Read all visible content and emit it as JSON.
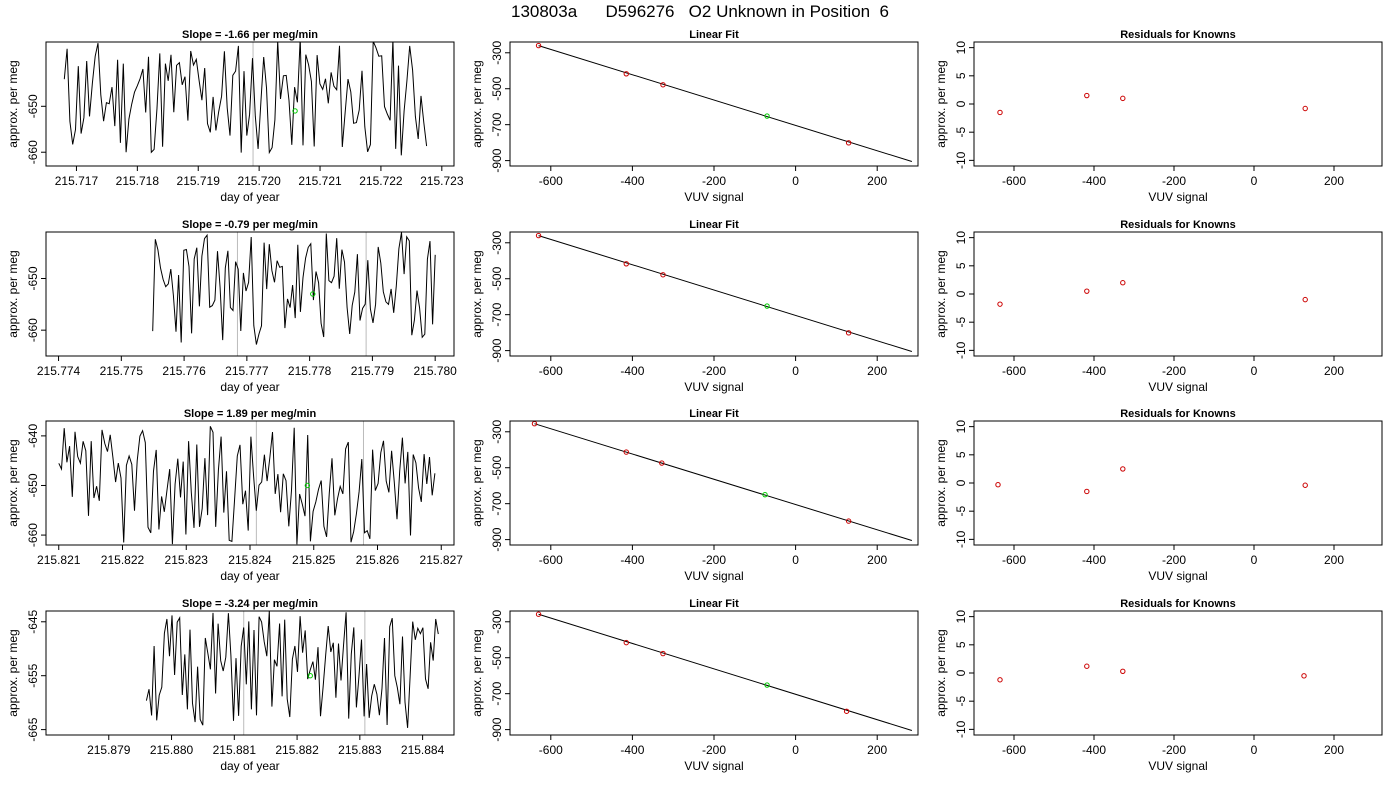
{
  "page_title": "130803a      D596276   O2 Unknown in Position  6",
  "colors": {
    "trace": "#000000",
    "known_point": "#cc0000",
    "unknown_point": "#00cc00",
    "vline": "#bbbbbb",
    "axis": "#000000"
  },
  "chart_data": [
    {
      "type": "line",
      "title": "Slope =  -1.66  per meg/min",
      "xlabel": "day of year",
      "ylabel": "approx. per meg",
      "xlim": [
        215.7165,
        215.7232
      ],
      "ylim": [
        -663,
        -636
      ],
      "xticks": [
        "215.717",
        "215.718",
        "215.719",
        "215.720",
        "215.721",
        "215.722",
        "215.723"
      ],
      "yticks": [
        "-650",
        "-660"
      ],
      "vlines": [
        215.7199
      ],
      "unknown_point": {
        "x": 215.72059,
        "y": -651
      },
      "series_start": 215.7168,
      "series_end": 215.72275,
      "series_n": 130,
      "series_center": -648,
      "series_amp": 13,
      "seed": 11
    },
    {
      "type": "bar",
      "title": "Linear Fit",
      "xlabel": "VUV signal",
      "ylabel": "approx. per meg",
      "xlim": [
        -700,
        300
      ],
      "ylim": [
        -930,
        -240
      ],
      "xticks": [
        "-600",
        "-400",
        "-200",
        "0",
        "200"
      ],
      "yticks": [
        "-300",
        "-500",
        "-700",
        "-900"
      ],
      "fit": {
        "x": [
          -630,
          285
        ],
        "y": [
          -260,
          -905
        ]
      },
      "known_points": [
        {
          "x": -630,
          "y": -260
        },
        {
          "x": -415,
          "y": -417
        },
        {
          "x": -325,
          "y": -478
        },
        {
          "x": 130,
          "y": -801
        }
      ],
      "unknown_point": {
        "x": -70,
        "y": -652
      }
    },
    {
      "type": "scatter",
      "title": "Residuals for Knowns",
      "xlabel": "VUV signal",
      "ylabel": "approx. per meg",
      "xlim": [
        -700,
        320
      ],
      "ylim": [
        -11,
        11
      ],
      "xticks": [
        "-600",
        "-400",
        "-200",
        "0",
        "200"
      ],
      "yticks": [
        "10",
        "5",
        "0",
        "-5",
        "-10"
      ],
      "points": [
        {
          "x": -635,
          "y": -1.5
        },
        {
          "x": -418,
          "y": 1.5
        },
        {
          "x": -328,
          "y": 1.0
        },
        {
          "x": 128,
          "y": -0.8
        }
      ]
    },
    {
      "type": "line",
      "title": "Slope =  -0.79  per meg/min",
      "xlabel": "day of year",
      "ylabel": "approx. per meg",
      "xlim": [
        215.7738,
        215.7803
      ],
      "ylim": [
        -665,
        -641
      ],
      "xticks": [
        "215.774",
        "215.775",
        "215.776",
        "215.777",
        "215.778",
        "215.779",
        "215.780"
      ],
      "yticks": [
        "-650",
        "-660"
      ],
      "vlines": [
        215.77685,
        215.7789
      ],
      "unknown_point": {
        "x": 215.77805,
        "y": -653
      },
      "series_start": 215.7755,
      "series_end": 215.78,
      "series_n": 110,
      "series_center": -652,
      "series_amp": 11,
      "seed": 23
    },
    {
      "type": "bar",
      "title": "Linear Fit",
      "xlabel": "VUV signal",
      "ylabel": "approx. per meg",
      "xlim": [
        -700,
        300
      ],
      "ylim": [
        -930,
        -240
      ],
      "xticks": [
        "-600",
        "-400",
        "-200",
        "0",
        "200"
      ],
      "yticks": [
        "-300",
        "-500",
        "-700",
        "-900"
      ],
      "fit": {
        "x": [
          -630,
          285
        ],
        "y": [
          -260,
          -905
        ]
      },
      "known_points": [
        {
          "x": -630,
          "y": -260
        },
        {
          "x": -415,
          "y": -417
        },
        {
          "x": -325,
          "y": -478
        },
        {
          "x": 130,
          "y": -801
        }
      ],
      "unknown_point": {
        "x": -70,
        "y": -652
      }
    },
    {
      "type": "scatter",
      "title": "Residuals for Knowns",
      "xlabel": "VUV signal",
      "ylabel": "approx. per meg",
      "xlim": [
        -700,
        320
      ],
      "ylim": [
        -11,
        11
      ],
      "xticks": [
        "-600",
        "-400",
        "-200",
        "0",
        "200"
      ],
      "yticks": [
        "10",
        "5",
        "0",
        "-5",
        "-10"
      ],
      "points": [
        {
          "x": -635,
          "y": -1.8
        },
        {
          "x": -418,
          "y": 0.5
        },
        {
          "x": -328,
          "y": 2.0
        },
        {
          "x": 128,
          "y": -1.0
        }
      ]
    },
    {
      "type": "line",
      "title": "Slope =  1.89  per meg/min",
      "xlabel": "day of year",
      "ylabel": "approx. per meg",
      "xlim": [
        215.8208,
        215.8272
      ],
      "ylim": [
        -662,
        -637
      ],
      "xticks": [
        "215.821",
        "215.822",
        "215.823",
        "215.824",
        "215.825",
        "215.826",
        "215.827"
      ],
      "yticks": [
        "-640",
        "-650",
        "-660"
      ],
      "vlines": [
        215.8241,
        215.82578
      ],
      "unknown_point": {
        "x": 215.8249,
        "y": -650
      },
      "series_start": 215.821,
      "series_end": 215.8269,
      "series_n": 140,
      "series_center": -650,
      "series_amp": 12,
      "seed": 37
    },
    {
      "type": "bar",
      "title": "Linear Fit",
      "xlabel": "VUV signal",
      "ylabel": "approx. per meg",
      "xlim": [
        -700,
        300
      ],
      "ylim": [
        -930,
        -240
      ],
      "xticks": [
        "-600",
        "-400",
        "-200",
        "0",
        "200"
      ],
      "yticks": [
        "-300",
        "-500",
        "-700",
        "-900"
      ],
      "fit": {
        "x": [
          -640,
          285
        ],
        "y": [
          -255,
          -905
        ]
      },
      "known_points": [
        {
          "x": -640,
          "y": -255
        },
        {
          "x": -415,
          "y": -413
        },
        {
          "x": -328,
          "y": -474
        },
        {
          "x": 130,
          "y": -797
        }
      ],
      "unknown_point": {
        "x": -75,
        "y": -650
      }
    },
    {
      "type": "scatter",
      "title": "Residuals for Knowns",
      "xlabel": "VUV signal",
      "ylabel": "approx. per meg",
      "xlim": [
        -700,
        320
      ],
      "ylim": [
        -11,
        11
      ],
      "xticks": [
        "-600",
        "-400",
        "-200",
        "0",
        "200"
      ],
      "yticks": [
        "10",
        "5",
        "0",
        "-5",
        "-10"
      ],
      "points": [
        {
          "x": -640,
          "y": -0.3
        },
        {
          "x": -418,
          "y": -1.5
        },
        {
          "x": -328,
          "y": 2.5
        },
        {
          "x": 128,
          "y": -0.4
        }
      ]
    },
    {
      "type": "line",
      "title": "Slope =  -3.24  per meg/min",
      "xlabel": "day of year",
      "ylabel": "approx. per meg",
      "xlim": [
        215.878,
        215.8845
      ],
      "ylim": [
        -666,
        -643
      ],
      "xticks": [
        "215.879",
        "215.880",
        "215.881",
        "215.882",
        "215.883",
        "215.884"
      ],
      "yticks": [
        "-645",
        "-655",
        "-665"
      ],
      "vlines": [
        215.88115,
        215.88308
      ],
      "unknown_point": {
        "x": 215.88221,
        "y": -655
      },
      "series_start": 215.8796,
      "series_end": 215.88425,
      "series_n": 115,
      "series_center": -654,
      "series_amp": 11,
      "seed": 51
    },
    {
      "type": "bar",
      "title": "Linear Fit",
      "xlabel": "VUV signal",
      "ylabel": "approx. per meg",
      "xlim": [
        -700,
        300
      ],
      "ylim": [
        -930,
        -240
      ],
      "xticks": [
        "-600",
        "-400",
        "-200",
        "0",
        "200"
      ],
      "yticks": [
        "-300",
        "-500",
        "-700",
        "-900"
      ],
      "fit": {
        "x": [
          -630,
          285
        ],
        "y": [
          -258,
          -905
        ]
      },
      "known_points": [
        {
          "x": -630,
          "y": -258
        },
        {
          "x": -415,
          "y": -416
        },
        {
          "x": -325,
          "y": -477
        },
        {
          "x": 125,
          "y": -798
        }
      ],
      "unknown_point": {
        "x": -70,
        "y": -652
      }
    },
    {
      "type": "scatter",
      "title": "Residuals for Knowns",
      "xlabel": "VUV signal",
      "ylabel": "approx. per meg",
      "xlim": [
        -700,
        320
      ],
      "ylim": [
        -11,
        11
      ],
      "xticks": [
        "-600",
        "-400",
        "-200",
        "0",
        "200"
      ],
      "yticks": [
        "10",
        "5",
        "0",
        "-5",
        "-10"
      ],
      "points": [
        {
          "x": -635,
          "y": -1.2
        },
        {
          "x": -418,
          "y": 1.2
        },
        {
          "x": -328,
          "y": 0.3
        },
        {
          "x": 125,
          "y": -0.5
        }
      ]
    }
  ]
}
